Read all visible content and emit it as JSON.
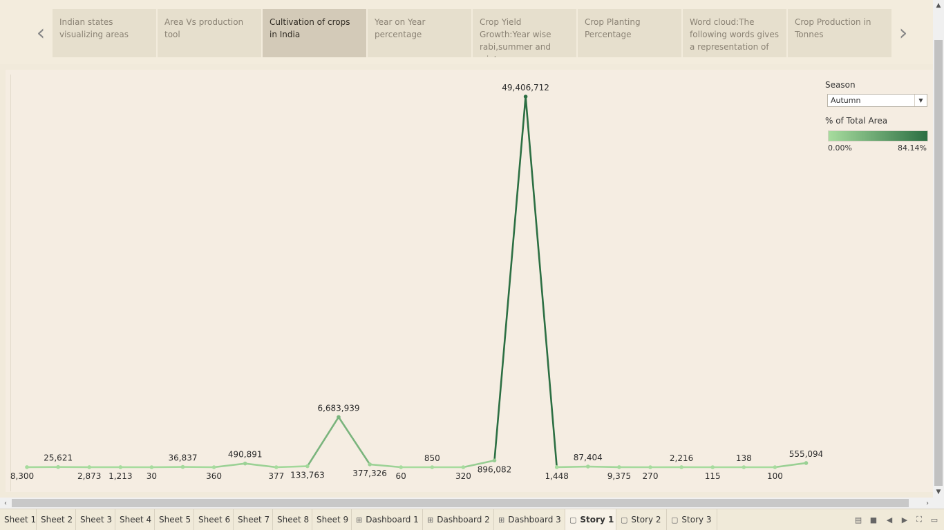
{
  "story_nav": {
    "prev_icon": "chevron-left-icon",
    "next_icon": "chevron-right-icon",
    "points": [
      {
        "label": "Indian states visualizing areas",
        "active": false
      },
      {
        "label": "Area Vs production tool",
        "active": false
      },
      {
        "label": "Cultivation of crops in India",
        "active": true
      },
      {
        "label": "Year on Year percentage",
        "active": false
      },
      {
        "label": "Crop Yield Growth:Year wise rabi,summer and winter",
        "active": false
      },
      {
        "label": "Crop Planting Percentage",
        "active": false
      },
      {
        "label": "Word cloud:The following words gives a representation of",
        "active": false
      },
      {
        "label": "Crop Production in Tonnes",
        "active": false
      }
    ]
  },
  "legend": {
    "season_title": "Season",
    "season_value": "Autumn",
    "color_title": "% of Total Area",
    "color_min": "0.00%",
    "color_max": "84.14%",
    "color_low": "#a7dc9e",
    "color_high": "#2c6f43"
  },
  "chart_data": {
    "type": "line",
    "title": "",
    "xlabel": "",
    "ylabel": "",
    "values": [
      8300,
      25621,
      2873,
      1213,
      30,
      36837,
      360,
      490891,
      377,
      133763,
      6683939,
      377326,
      60,
      850,
      320,
      896082,
      49406712,
      1448,
      87404,
      9375,
      270,
      2216,
      115,
      138,
      100,
      555094
    ],
    "labels": [
      "8,300",
      "25,621",
      "2,873",
      "1,213",
      "30",
      "36,837",
      "360",
      "490,891",
      "377",
      "133,763",
      "6,683,939",
      "377,326",
      "60",
      "850",
      "320",
      "896,082",
      "49,406,712",
      "1,448",
      "87,404",
      "9,375",
      "270",
      "2,216",
      "115",
      "138",
      "100",
      "555,094"
    ],
    "label_below": [
      true,
      false,
      true,
      true,
      true,
      false,
      true,
      false,
      true,
      true,
      false,
      true,
      true,
      false,
      true,
      true,
      false,
      true,
      false,
      true,
      true,
      false,
      true,
      false,
      true,
      false
    ],
    "ylim": [
      0,
      49406712
    ],
    "grid": false,
    "color_pct": [
      0.01,
      0.03,
      0.0,
      0.0,
      0.0,
      0.04,
      0.0,
      0.84,
      0.0,
      0.14,
      11.38,
      0.64,
      0.0,
      0.0,
      0.0,
      1.53,
      84.14,
      0.0,
      0.15,
      0.02,
      0.0,
      0.0,
      0.0,
      0.0,
      0.0,
      0.95
    ]
  },
  "tabs": [
    {
      "label": "Sheet 1",
      "icon": "",
      "active": false
    },
    {
      "label": "Sheet 2",
      "icon": "",
      "active": false
    },
    {
      "label": "Sheet 3",
      "icon": "",
      "active": false
    },
    {
      "label": "Sheet 4",
      "icon": "",
      "active": false
    },
    {
      "label": "Sheet 5",
      "icon": "",
      "active": false
    },
    {
      "label": "Sheet 6",
      "icon": "",
      "active": false
    },
    {
      "label": "Sheet 7",
      "icon": "",
      "active": false
    },
    {
      "label": "Sheet 8",
      "icon": "",
      "active": false
    },
    {
      "label": "Sheet 9",
      "icon": "",
      "active": false
    },
    {
      "label": "Dashboard 1",
      "icon": "dashboard-icon",
      "active": false
    },
    {
      "label": "Dashboard 2",
      "icon": "dashboard-icon",
      "active": false
    },
    {
      "label": "Dashboard 3",
      "icon": "dashboard-icon",
      "active": false
    },
    {
      "label": "Story 1",
      "icon": "story-icon",
      "active": true
    },
    {
      "label": "Story 2",
      "icon": "story-icon",
      "active": false
    },
    {
      "label": "Story 3",
      "icon": "story-icon",
      "active": false
    }
  ]
}
